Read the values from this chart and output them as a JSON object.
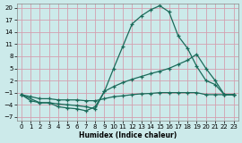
{
  "xlabel": "Humidex (Indice chaleur)",
  "bg_color": "#cceaea",
  "grid_color": "#d4a0b0",
  "line_color": "#1a6b5a",
  "xlim": [
    -0.5,
    23.5
  ],
  "ylim": [
    -8,
    21
  ],
  "xticks": [
    0,
    1,
    2,
    3,
    4,
    5,
    6,
    7,
    8,
    9,
    10,
    11,
    12,
    13,
    14,
    15,
    16,
    17,
    18,
    19,
    20,
    21,
    22,
    23
  ],
  "yticks": [
    -7,
    -4,
    -1,
    2,
    5,
    8,
    11,
    14,
    17,
    20
  ],
  "line1_x": [
    0,
    1,
    2,
    3,
    4,
    5,
    6,
    7,
    8,
    9,
    10,
    11,
    12,
    13,
    14,
    15,
    16,
    17,
    18,
    19,
    20,
    21,
    22,
    23
  ],
  "line1_y": [
    -1.5,
    -3,
    -3.5,
    -3.5,
    -4.5,
    -4.8,
    -5,
    -5.5,
    -4.5,
    -0.7,
    5,
    10.5,
    16,
    18,
    19.5,
    20.5,
    19,
    13,
    10,
    5.5,
    2,
    1,
    -1.5,
    -1.5
  ],
  "line2_x": [
    0,
    2,
    3,
    4,
    5,
    6,
    7,
    8,
    9,
    10,
    11,
    12,
    13,
    14,
    15,
    16,
    17,
    18,
    19,
    20,
    21,
    22,
    23
  ],
  "line2_y": [
    -1.5,
    -3.5,
    -3.5,
    -3.8,
    -4.0,
    -4.2,
    -4.5,
    -5,
    -0.7,
    0.5,
    1.5,
    2.3,
    3,
    3.7,
    4.3,
    5,
    6,
    7,
    8.5,
    5,
    2,
    -1.5,
    -1.5
  ],
  "line3_x": [
    0,
    1,
    2,
    3,
    4,
    5,
    6,
    7,
    8,
    9,
    10,
    11,
    12,
    13,
    14,
    15,
    16,
    17,
    18,
    19,
    20,
    21,
    22,
    23
  ],
  "line3_y": [
    -1.5,
    -2,
    -2.5,
    -2.5,
    -2.8,
    -2.8,
    -2.8,
    -3.0,
    -3.0,
    -2.5,
    -2,
    -1.8,
    -1.5,
    -1.3,
    -1.2,
    -1.0,
    -1.0,
    -1.0,
    -1.0,
    -1.0,
    -1.5,
    -1.5,
    -1.5,
    -1.5
  ]
}
